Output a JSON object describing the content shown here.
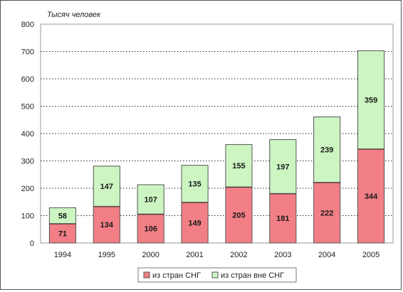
{
  "chart_data": {
    "type": "bar",
    "stacked": true,
    "unit_label": "Тысяч человек",
    "categories": [
      "1994",
      "1995",
      "2000",
      "2001",
      "2002",
      "2003",
      "2004",
      "2005"
    ],
    "series": [
      {
        "name": "из стран СНГ",
        "color": "#f27f86",
        "values": [
          71,
          134,
          106,
          149,
          205,
          181,
          222,
          344
        ]
      },
      {
        "name": "из стран вне СНГ",
        "color": "#ccf5c2",
        "values": [
          58,
          147,
          107,
          135,
          155,
          197,
          239,
          359
        ]
      }
    ],
    "ylim": [
      0,
      800
    ],
    "yticks": [
      0,
      100,
      200,
      300,
      400,
      500,
      600,
      700,
      800
    ],
    "grid": true,
    "legend": "bottom"
  }
}
